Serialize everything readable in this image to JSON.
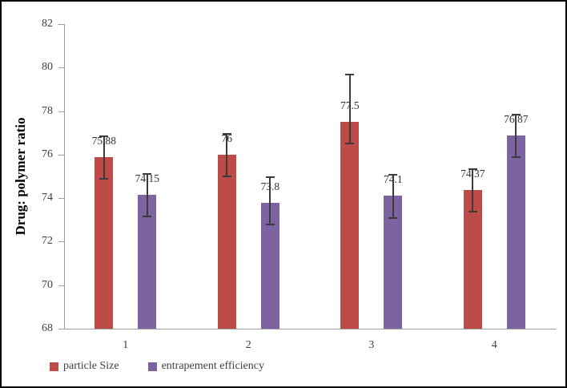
{
  "chart_data": {
    "type": "bar",
    "title": "",
    "categories": [
      "1",
      "2",
      "3",
      "4"
    ],
    "series": [
      {
        "name": "particle Size",
        "color": "#BE4B48",
        "values": [
          75.88,
          76,
          77.5,
          74.37
        ],
        "labels": [
          "75.88",
          "76",
          "77.5",
          "74.37"
        ],
        "error_up": [
          1.0,
          1.0,
          2.2,
          1.0
        ],
        "error_down": [
          1.0,
          1.0,
          1.0,
          1.0
        ]
      },
      {
        "name": "entrapement efficiency",
        "color": "#7E63A1",
        "values": [
          74.15,
          73.8,
          74.1,
          76.87
        ],
        "labels": [
          "74.15",
          "73.8",
          "74.1",
          "76.87"
        ],
        "error_up": [
          1.0,
          1.2,
          1.0,
          1.0
        ],
        "error_down": [
          1.0,
          1.0,
          1.0,
          1.0
        ]
      }
    ],
    "xlabel": "",
    "ylabel": "Drug: polymer ratio",
    "ylim": [
      68,
      82
    ],
    "ytick_step": 2,
    "grid": false,
    "legend_position": "bottom-left",
    "axis_color": "#9d9d9d",
    "error_bar_color": "#3b3b3b",
    "text_color": "#404040"
  }
}
